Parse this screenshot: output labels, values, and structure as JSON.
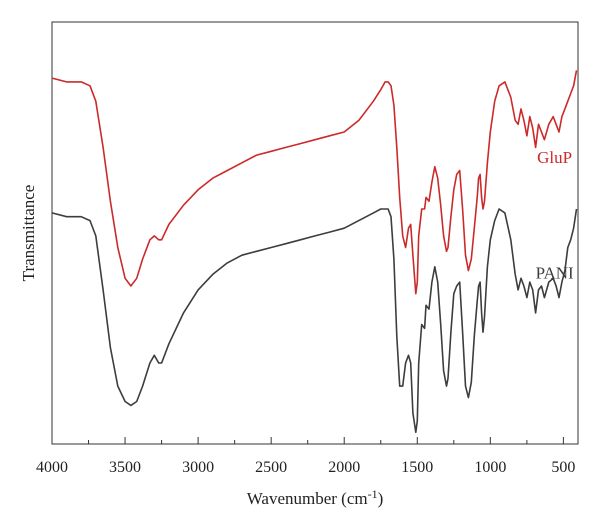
{
  "chart_data": {
    "type": "line",
    "xlabel": "Wavenumber (cm",
    "xlabel_sup": "-1",
    "xlabel_close": ")",
    "ylabel": "Transmittance",
    "x_reversed": true,
    "xlim": [
      4000,
      400
    ],
    "ylim": [
      0,
      1
    ],
    "x_ticks": [
      4000,
      3500,
      3000,
      2500,
      2000,
      1500,
      1000,
      500
    ],
    "x_tick_labels": [
      "4000",
      "3500",
      "3000",
      "2500",
      "2000",
      "1500",
      "1000",
      "500"
    ],
    "y_ticks_shown": false,
    "grid": false,
    "legend": "none",
    "series": [
      {
        "name": "GluP",
        "color": "#cc2a2a",
        "x": [
          4000,
          3900,
          3800,
          3740,
          3700,
          3650,
          3600,
          3550,
          3500,
          3460,
          3420,
          3380,
          3330,
          3300,
          3270,
          3250,
          3200,
          3100,
          3000,
          2900,
          2800,
          2700,
          2600,
          2500,
          2400,
          2300,
          2200,
          2100,
          2000,
          1900,
          1800,
          1750,
          1720,
          1700,
          1680,
          1660,
          1640,
          1620,
          1600,
          1580,
          1560,
          1545,
          1530,
          1510,
          1500,
          1490,
          1470,
          1450,
          1440,
          1420,
          1400,
          1380,
          1360,
          1340,
          1320,
          1300,
          1290,
          1270,
          1250,
          1230,
          1210,
          1190,
          1170,
          1150,
          1130,
          1110,
          1090,
          1080,
          1070,
          1060,
          1050,
          1040,
          1020,
          1000,
          970,
          940,
          900,
          860,
          830,
          810,
          790,
          770,
          750,
          730,
          710,
          690,
          670,
          650,
          630,
          600,
          570,
          550,
          530,
          510,
          490,
          470,
          450,
          430,
          410
        ],
        "y": [
          0.94,
          0.93,
          0.93,
          0.92,
          0.88,
          0.76,
          0.62,
          0.5,
          0.42,
          0.4,
          0.42,
          0.47,
          0.52,
          0.53,
          0.52,
          0.52,
          0.56,
          0.61,
          0.65,
          0.68,
          0.7,
          0.72,
          0.74,
          0.75,
          0.76,
          0.77,
          0.78,
          0.79,
          0.8,
          0.83,
          0.88,
          0.91,
          0.93,
          0.93,
          0.92,
          0.87,
          0.76,
          0.63,
          0.53,
          0.5,
          0.55,
          0.56,
          0.48,
          0.38,
          0.41,
          0.53,
          0.6,
          0.6,
          0.63,
          0.62,
          0.67,
          0.71,
          0.68,
          0.61,
          0.53,
          0.49,
          0.5,
          0.58,
          0.65,
          0.69,
          0.7,
          0.6,
          0.48,
          0.44,
          0.47,
          0.55,
          0.63,
          0.68,
          0.69,
          0.63,
          0.6,
          0.62,
          0.72,
          0.8,
          0.88,
          0.92,
          0.93,
          0.89,
          0.83,
          0.82,
          0.86,
          0.83,
          0.79,
          0.84,
          0.81,
          0.76,
          0.82,
          0.8,
          0.78,
          0.82,
          0.84,
          0.82,
          0.8,
          0.84,
          0.86,
          0.88,
          0.9,
          0.92,
          0.96
        ]
      },
      {
        "name": "PANI",
        "color": "#3d3d3d",
        "x": [
          4000,
          3900,
          3800,
          3740,
          3700,
          3650,
          3600,
          3550,
          3500,
          3460,
          3420,
          3380,
          3330,
          3300,
          3270,
          3250,
          3200,
          3100,
          3000,
          2900,
          2800,
          2700,
          2600,
          2500,
          2400,
          2300,
          2200,
          2100,
          2000,
          1900,
          1800,
          1750,
          1720,
          1700,
          1680,
          1660,
          1640,
          1620,
          1600,
          1580,
          1560,
          1545,
          1530,
          1510,
          1500,
          1490,
          1470,
          1450,
          1440,
          1420,
          1400,
          1380,
          1360,
          1340,
          1320,
          1300,
          1290,
          1270,
          1250,
          1230,
          1210,
          1190,
          1170,
          1150,
          1130,
          1110,
          1090,
          1080,
          1070,
          1060,
          1050,
          1040,
          1020,
          1000,
          970,
          940,
          900,
          860,
          830,
          810,
          790,
          770,
          750,
          730,
          710,
          690,
          670,
          650,
          630,
          600,
          570,
          550,
          530,
          510,
          490,
          470,
          450,
          430,
          410
        ],
        "y": [
          0.59,
          0.58,
          0.58,
          0.57,
          0.53,
          0.39,
          0.24,
          0.14,
          0.1,
          0.09,
          0.1,
          0.14,
          0.2,
          0.22,
          0.2,
          0.2,
          0.25,
          0.33,
          0.39,
          0.43,
          0.46,
          0.48,
          0.49,
          0.5,
          0.51,
          0.52,
          0.53,
          0.54,
          0.55,
          0.57,
          0.59,
          0.6,
          0.6,
          0.6,
          0.58,
          0.47,
          0.27,
          0.14,
          0.14,
          0.2,
          0.22,
          0.2,
          0.07,
          0.02,
          0.05,
          0.2,
          0.3,
          0.29,
          0.35,
          0.34,
          0.41,
          0.45,
          0.41,
          0.3,
          0.18,
          0.14,
          0.16,
          0.28,
          0.38,
          0.4,
          0.41,
          0.28,
          0.14,
          0.11,
          0.15,
          0.27,
          0.36,
          0.4,
          0.41,
          0.33,
          0.28,
          0.32,
          0.45,
          0.52,
          0.57,
          0.6,
          0.59,
          0.52,
          0.43,
          0.39,
          0.42,
          0.4,
          0.37,
          0.41,
          0.39,
          0.33,
          0.39,
          0.4,
          0.37,
          0.41,
          0.42,
          0.4,
          0.37,
          0.41,
          0.44,
          0.5,
          0.52,
          0.55,
          0.6
        ]
      }
    ],
    "series_labels": [
      {
        "text": "GluP",
        "color": "#cc2a2a",
        "anchor_x": 560,
        "anchor_y": 0.72
      },
      {
        "text": "PANI",
        "color": "#3d3d3d",
        "anchor_x": 560,
        "anchor_y": 0.42
      }
    ]
  }
}
